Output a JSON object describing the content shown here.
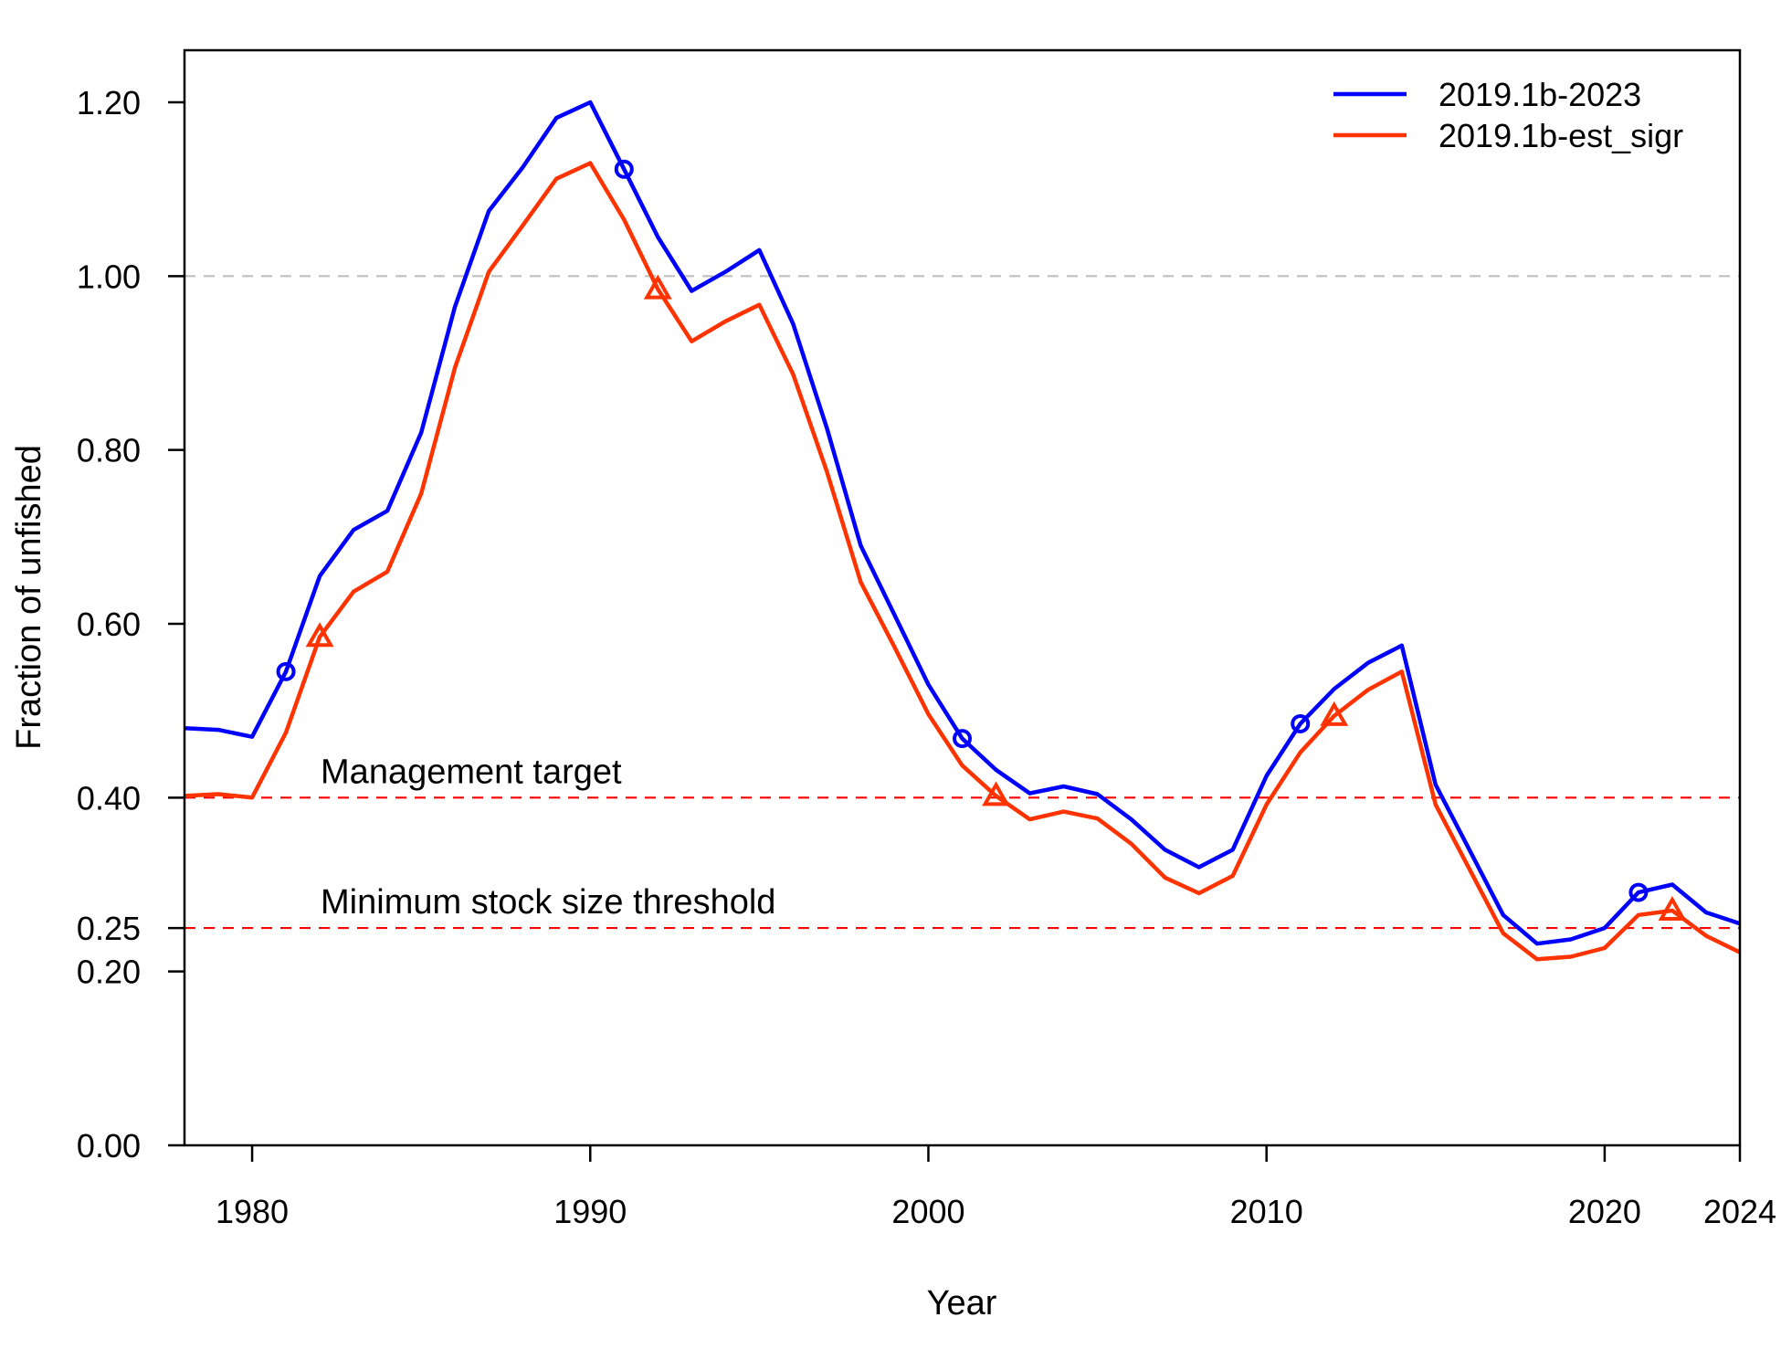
{
  "chart_data": {
    "type": "line",
    "xlabel": "Year",
    "ylabel": "Fraction of unfished",
    "xlim": [
      1978,
      2024
    ],
    "ylim": [
      0,
      1.2
    ],
    "x_ticks": [
      {
        "value": 1980,
        "label": "1980"
      },
      {
        "value": 1990,
        "label": "1990"
      },
      {
        "value": 2000,
        "label": "2000"
      },
      {
        "value": 2010,
        "label": "2010"
      },
      {
        "value": 2020,
        "label": "2020"
      },
      {
        "value": 2024,
        "label": "2024"
      }
    ],
    "y_ticks": [
      {
        "value": 0.0,
        "label": "0.00"
      },
      {
        "value": 0.2,
        "label": "0.20"
      },
      {
        "value": 0.25,
        "label": "0.25"
      },
      {
        "value": 0.4,
        "label": "0.40"
      },
      {
        "value": 0.6,
        "label": "0.60"
      },
      {
        "value": 0.8,
        "label": "0.80"
      },
      {
        "value": 1.0,
        "label": "1.00"
      },
      {
        "value": 1.2,
        "label": "1.20"
      }
    ],
    "reference_lines": [
      {
        "y": 1.0,
        "color": "#bfbfbf",
        "style": "dashed",
        "label": ""
      },
      {
        "y": 0.4,
        "color": "#ff0000",
        "style": "dashed",
        "label": "Management target",
        "label_x": 1980
      },
      {
        "y": 0.25,
        "color": "#ff0000",
        "style": "dashed",
        "label": "Minimum stock size threshold",
        "label_x": 1980
      }
    ],
    "legend_position": "top-right",
    "series": [
      {
        "name": "2019.1b-2023",
        "color": "#0000ff",
        "marker": "circle",
        "marker_years": [
          1981,
          1991,
          2001,
          2011,
          2021
        ],
        "x": [
          1978,
          1979,
          1980,
          1981,
          1982,
          1983,
          1984,
          1985,
          1986,
          1987,
          1988,
          1989,
          1990,
          1991,
          1992,
          1993,
          1994,
          1995,
          1996,
          1997,
          1998,
          1999,
          2000,
          2001,
          2002,
          2003,
          2004,
          2005,
          2006,
          2007,
          2008,
          2009,
          2010,
          2011,
          2012,
          2013,
          2014,
          2015,
          2016,
          2017,
          2018,
          2019,
          2020,
          2021,
          2022,
          2023,
          2024
        ],
        "values": [
          0.48,
          0.478,
          0.47,
          0.545,
          0.655,
          0.708,
          0.73,
          0.82,
          0.965,
          1.075,
          1.125,
          1.182,
          1.2,
          1.123,
          1.045,
          0.983,
          1.005,
          1.03,
          0.945,
          0.825,
          0.69,
          0.61,
          0.53,
          0.468,
          0.432,
          0.405,
          0.413,
          0.404,
          0.375,
          0.34,
          0.32,
          0.34,
          0.425,
          0.485,
          0.525,
          0.555,
          0.575,
          0.415,
          0.34,
          0.265,
          0.232,
          0.237,
          0.25,
          0.291,
          0.3,
          0.268,
          0.255
        ]
      },
      {
        "name": "2019.1b-est_sigr",
        "color": "#ff3300",
        "marker": "triangle",
        "marker_years": [
          1982,
          1992,
          2002,
          2012,
          2022
        ],
        "x": [
          1978,
          1979,
          1980,
          1981,
          1982,
          1983,
          1984,
          1985,
          1986,
          1987,
          1988,
          1989,
          1990,
          1991,
          1992,
          1993,
          1994,
          1995,
          1996,
          1997,
          1998,
          1999,
          2000,
          2001,
          2002,
          2003,
          2004,
          2005,
          2006,
          2007,
          2008,
          2009,
          2010,
          2011,
          2012,
          2013,
          2014,
          2015,
          2016,
          2017,
          2018,
          2019,
          2020,
          2021,
          2022,
          2023,
          2024
        ],
        "values": [
          0.402,
          0.404,
          0.4,
          0.475,
          0.585,
          0.637,
          0.66,
          0.75,
          0.895,
          1.005,
          1.058,
          1.112,
          1.13,
          1.065,
          0.985,
          0.925,
          0.948,
          0.967,
          0.887,
          0.775,
          0.648,
          0.573,
          0.496,
          0.437,
          0.402,
          0.375,
          0.384,
          0.376,
          0.347,
          0.308,
          0.29,
          0.31,
          0.392,
          0.452,
          0.494,
          0.524,
          0.545,
          0.392,
          0.318,
          0.244,
          0.214,
          0.217,
          0.227,
          0.265,
          0.27,
          0.241,
          0.222
        ]
      }
    ]
  }
}
